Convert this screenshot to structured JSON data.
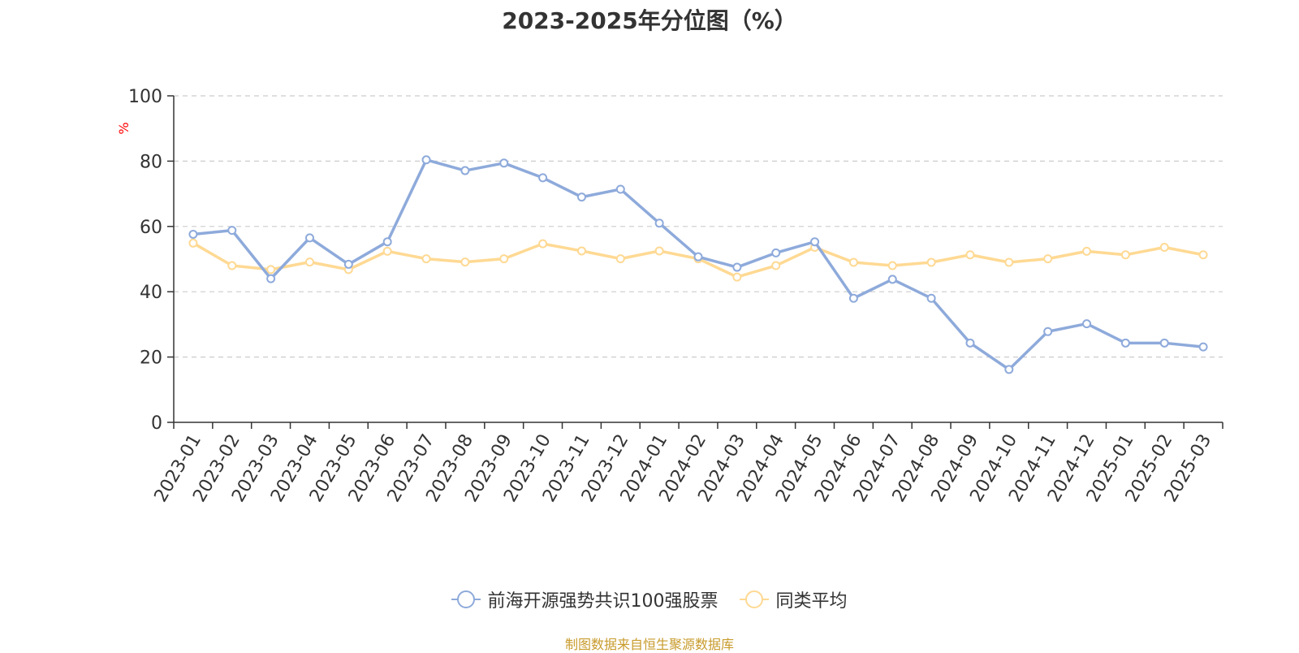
{
  "title": "2023-2025年分位图（%）",
  "source": "制图数据来自恒生聚源数据库",
  "colors": {
    "series1": "#8eaadb",
    "series2": "#ffd993",
    "ylabel": "#ff0000",
    "grid": "#cccccc",
    "axis": "#333333"
  },
  "chart_data": {
    "type": "line",
    "title": "2023-2025年分位图（%）",
    "xlabel": "",
    "ylabel": "%",
    "ylim": [
      0,
      100
    ],
    "yticks": [
      0,
      20,
      40,
      60,
      80,
      100
    ],
    "grid": true,
    "legend_position": "bottom-center",
    "categories": [
      "2023-01",
      "2023-02",
      "2023-03",
      "2023-04",
      "2023-05",
      "2023-06",
      "2023-07",
      "2023-08",
      "2023-09",
      "2023-10",
      "2023-11",
      "2023-12",
      "2024-01",
      "2024-02",
      "2024-03",
      "2024-04",
      "2024-05",
      "2024-06",
      "2024-07",
      "2024-08",
      "2024-09",
      "2024-10",
      "2024-11",
      "2024-12",
      "2025-01",
      "2025-02",
      "2025-03"
    ],
    "series": [
      {
        "name": "前海开源强势共识100强股票",
        "values": [
          57.6,
          58.8,
          44.0,
          56.5,
          48.4,
          55.3,
          80.4,
          77.1,
          79.4,
          74.9,
          69.0,
          71.4,
          61.0,
          50.7,
          47.5,
          51.9,
          55.3,
          38.0,
          43.8,
          38.0,
          24.3,
          16.2,
          27.8,
          30.2,
          24.3,
          24.3,
          23.1
        ]
      },
      {
        "name": "同类平均",
        "values": [
          54.9,
          48.0,
          46.8,
          49.1,
          46.8,
          52.4,
          50.1,
          49.1,
          50.1,
          54.7,
          52.5,
          50.1,
          52.5,
          50.1,
          44.5,
          48.0,
          53.6,
          49.0,
          48.0,
          49.0,
          51.3,
          49.0,
          50.1,
          52.4,
          51.3,
          53.6,
          51.3
        ]
      }
    ]
  }
}
